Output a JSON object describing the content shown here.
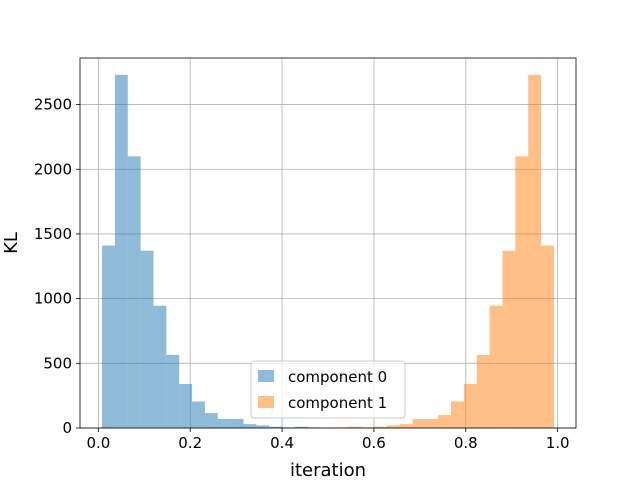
{
  "chart_data": {
    "type": "bar",
    "xlabel": "iteration",
    "ylabel": "KL",
    "xlim": [
      -0.04,
      1.04
    ],
    "ylim": [
      0,
      2860
    ],
    "xticks": [
      0.0,
      0.2,
      0.4,
      0.6,
      0.8,
      1.0
    ],
    "xtick_labels": [
      "0.0",
      "0.2",
      "0.4",
      "0.6",
      "0.8",
      "1.0"
    ],
    "yticks": [
      0,
      500,
      1000,
      1500,
      2000,
      2500
    ],
    "ytick_labels": [
      "0",
      "500",
      "1000",
      "1500",
      "2000",
      "2500"
    ],
    "grid": true,
    "legend_position": "bottom-center",
    "bin_width": 0.028,
    "series": [
      {
        "name": "component 0",
        "color": "#1f77b4",
        "alpha": 0.5,
        "bin_start": 0.008,
        "values": [
          1410,
          2730,
          2100,
          1370,
          945,
          565,
          340,
          205,
          115,
          70,
          70,
          30,
          20,
          10,
          5,
          10,
          5,
          3,
          2,
          1,
          1,
          1,
          0,
          0,
          0,
          0,
          0,
          0,
          0,
          0,
          0,
          0,
          0,
          0,
          0
        ]
      },
      {
        "name": "component 1",
        "color": "#ff7f0e",
        "alpha": 0.5,
        "bin_start": 0.992,
        "values": [
          1410,
          2730,
          2100,
          1370,
          945,
          565,
          340,
          205,
          100,
          70,
          70,
          30,
          20,
          10,
          5,
          10,
          5,
          3,
          2,
          1,
          1,
          1,
          0,
          0,
          0,
          0,
          0,
          0,
          0,
          0,
          0,
          0,
          0,
          0,
          0
        ]
      }
    ]
  }
}
